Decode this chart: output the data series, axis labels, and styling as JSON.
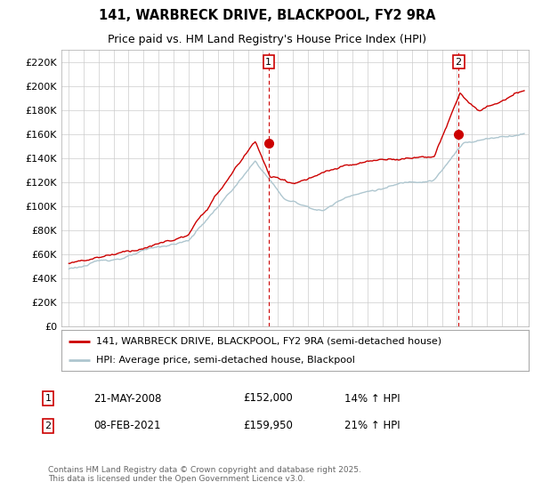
{
  "title": "141, WARBRECK DRIVE, BLACKPOOL, FY2 9RA",
  "subtitle": "Price paid vs. HM Land Registry's House Price Index (HPI)",
  "ylabel_ticks": [
    "£0",
    "£20K",
    "£40K",
    "£60K",
    "£80K",
    "£100K",
    "£120K",
    "£140K",
    "£160K",
    "£180K",
    "£200K",
    "£220K"
  ],
  "ytick_values": [
    0,
    20000,
    40000,
    60000,
    80000,
    100000,
    120000,
    140000,
    160000,
    180000,
    200000,
    220000
  ],
  "ylim": [
    0,
    230000
  ],
  "sale1_label": "1",
  "sale1_date": "21-MAY-2008",
  "sale1_price": 152000,
  "sale1_hpi_pct": "14% ↑ HPI",
  "sale2_label": "2",
  "sale2_date": "08-FEB-2021",
  "sale2_price": 159950,
  "sale2_hpi_pct": "21% ↑ HPI",
  "legend_line1": "141, WARBRECK DRIVE, BLACKPOOL, FY2 9RA (semi-detached house)",
  "legend_line2": "HPI: Average price, semi-detached house, Blackpool",
  "footer": "Contains HM Land Registry data © Crown copyright and database right 2025.\nThis data is licensed under the Open Government Licence v3.0.",
  "sale1_x": 2008.38,
  "sale2_x": 2021.1,
  "red_color": "#cc0000",
  "blue_color": "#aec6cf",
  "background_color": "#ffffff",
  "grid_color": "#cccccc"
}
